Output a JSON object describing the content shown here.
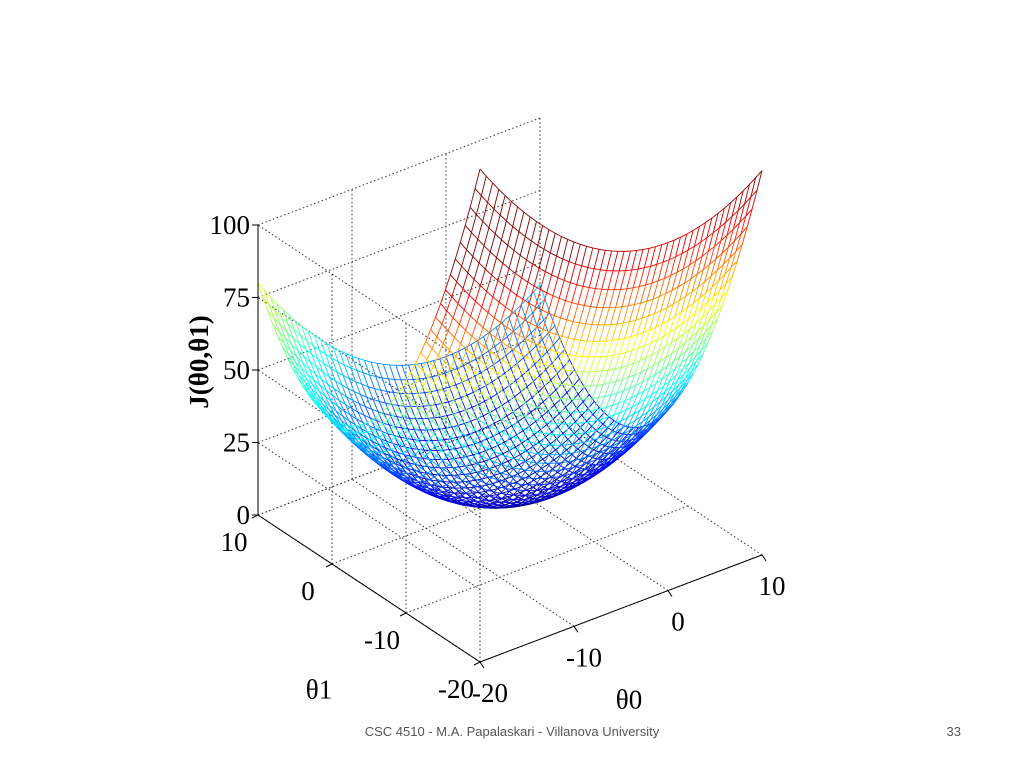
{
  "chart_data": {
    "type": "surface",
    "function": "J(theta0, theta1) = 0.125*theta0^2 + 0.3*theta1^2",
    "x_axis": {
      "label": "θ0",
      "range": [
        -20,
        10
      ],
      "ticks": [
        -20,
        -10,
        0,
        10
      ]
    },
    "y_axis": {
      "label": "θ1",
      "range": [
        -20,
        10
      ],
      "ticks": [
        -20,
        -10,
        0,
        10
      ]
    },
    "z_axis": {
      "label": "J(θ0,θ1)",
      "range": [
        0,
        100
      ],
      "ticks": [
        0,
        25,
        50,
        75,
        100
      ]
    },
    "corner_values": [
      {
        "theta0": -20,
        "theta1": -20,
        "J": 170
      },
      {
        "theta0": -20,
        "theta1": 10,
        "J": 80
      },
      {
        "theta0": 10,
        "theta1": -20,
        "J": 132.5
      },
      {
        "theta0": 10,
        "theta1": 10,
        "J": 42.5
      }
    ],
    "minimum": {
      "theta0": 0,
      "theta1": 0,
      "J": 0
    },
    "colormap": "jet",
    "grid": "dotted",
    "style": "wireframe mesh"
  },
  "footer": {
    "text": "CSC 4510 - M.A. Papalaskari - Villanova University",
    "page_number": "33"
  }
}
